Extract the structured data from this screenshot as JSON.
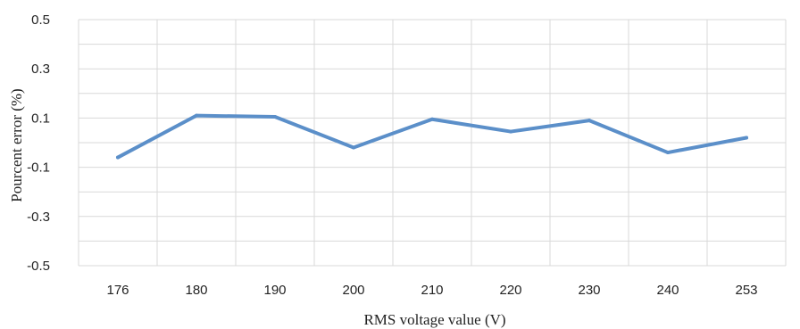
{
  "chart_data": {
    "type": "line",
    "xlabel": "RMS voltage value (V)",
    "ylabel": "Pourcent error (%)",
    "categories": [
      "176",
      "180",
      "190",
      "200",
      "210",
      "220",
      "230",
      "240",
      "253"
    ],
    "series": [
      {
        "values": [
          -0.06,
          0.11,
          0.105,
          -0.02,
          0.095,
          0.045,
          0.09,
          -0.04,
          0.02
        ]
      }
    ],
    "ylim": [
      -0.5,
      0.5
    ],
    "yticks": [
      "0.5",
      "0.3",
      "0.1",
      "-0.1",
      "-0.3",
      "-0.5"
    ],
    "grid": {
      "horizontal": true,
      "vertical": true
    },
    "legend": "none",
    "colors": {
      "line": "#5b8fc9",
      "grid": "#d9d9d9"
    }
  }
}
